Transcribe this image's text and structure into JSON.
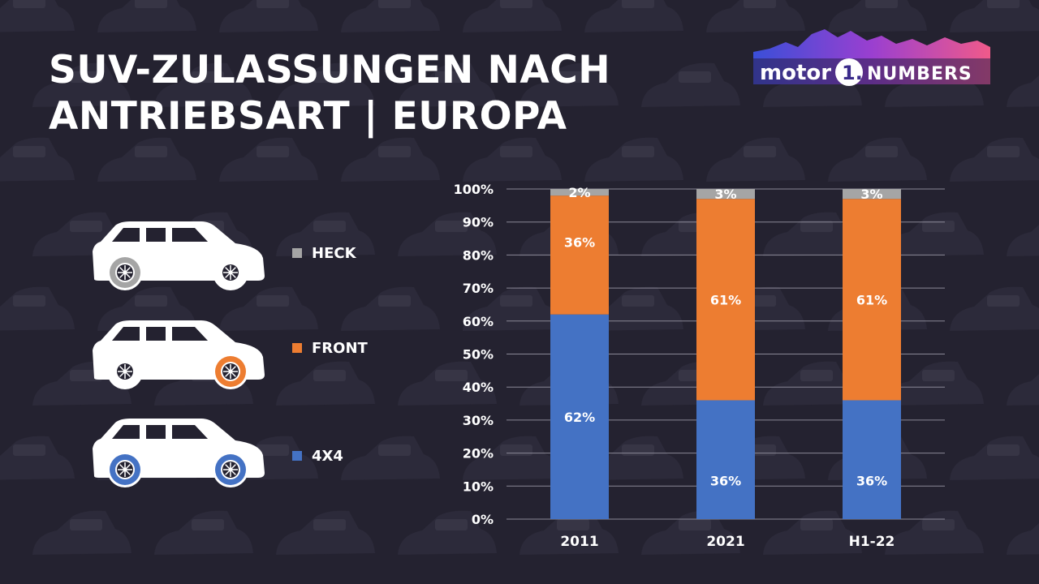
{
  "title": {
    "line1": "SUV-ZULASSUNGEN NACH",
    "line2": "ANTRIEBSART | EUROPA"
  },
  "logo": {
    "left": "motor",
    "mark": "1.",
    "right": "NUMBERS"
  },
  "legend": [
    {
      "key": "heck",
      "label": "HECK",
      "color": "#a5a5a5",
      "icon": "suv-rear-drive-icon"
    },
    {
      "key": "front",
      "label": "FRONT",
      "color": "#ed7d31",
      "icon": "suv-front-drive-icon"
    },
    {
      "key": "awd",
      "label": "4X4",
      "color": "#4472c4",
      "icon": "suv-four-wheel-drive-icon"
    }
  ],
  "colors": {
    "background": "#242230",
    "awd": "#4472c4",
    "front": "#ed7d31",
    "heck": "#a5a5a5",
    "wheel_default": "#ffffff"
  },
  "chart_data": {
    "type": "bar",
    "stacked": true,
    "categories": [
      "2011",
      "2021",
      "H1-22"
    ],
    "series": [
      {
        "name": "4X4",
        "values": [
          62,
          36,
          36
        ],
        "labels": [
          "62%",
          "36%",
          "36%"
        ]
      },
      {
        "name": "FRONT",
        "values": [
          36,
          61,
          61
        ],
        "labels": [
          "36%",
          "61%",
          "61%"
        ]
      },
      {
        "name": "HECK",
        "values": [
          2,
          3,
          3
        ],
        "labels": [
          "2%",
          "3%",
          "3%"
        ]
      }
    ],
    "ylim": [
      0,
      100
    ],
    "yticks": [
      "0%",
      "10%",
      "20%",
      "30%",
      "40%",
      "50%",
      "60%",
      "70%",
      "80%",
      "90%",
      "100%"
    ],
    "grid": true,
    "legend_position": "left"
  }
}
